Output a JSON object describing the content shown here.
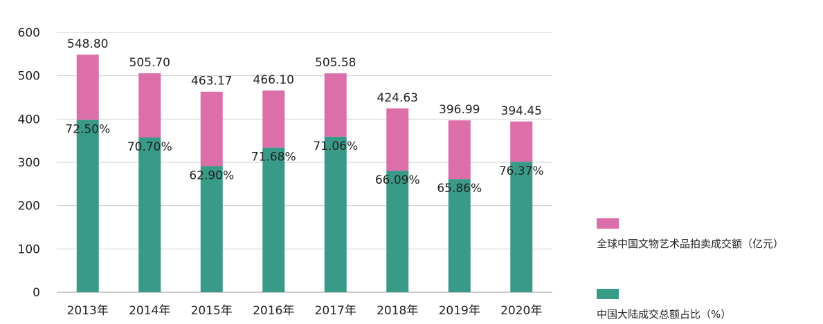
{
  "chart_data": {
    "type": "bar",
    "stacked": true,
    "categories": [
      "2013年",
      "2014年",
      "2015年",
      "2016年",
      "2017年",
      "2018年",
      "2019年",
      "2020年"
    ],
    "series": [
      {
        "name": "全球中国文物艺术品拍卖成交额（亿元）",
        "color": "#dc6ea9",
        "values": [
          548.8,
          505.7,
          463.17,
          466.1,
          505.58,
          424.63,
          396.99,
          394.45
        ],
        "labels": [
          "548.80",
          "505.70",
          "463.17",
          "466.10",
          "505.58",
          "424.63",
          "396.99",
          "394.45"
        ]
      },
      {
        "name": "中国大陆成交总额占比（%）",
        "color": "#3a9a88",
        "values": [
          72.5,
          70.7,
          62.9,
          71.68,
          71.06,
          66.09,
          65.86,
          76.37
        ],
        "labels": [
          "72.50%",
          "70.70%",
          "62.90%",
          "71.68%",
          "71.06%",
          "66.09%",
          "65.86%",
          "76.37%"
        ]
      }
    ],
    "yticks": [
      "0",
      "100",
      "200",
      "300",
      "400",
      "500",
      "600"
    ],
    "ylim": [
      0,
      600
    ],
    "grid": true,
    "legend_position": "right"
  }
}
